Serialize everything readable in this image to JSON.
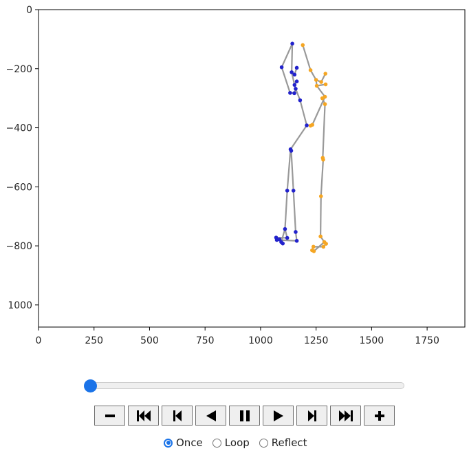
{
  "chart_data": {
    "type": "scatter",
    "title": "",
    "xlabel": "",
    "ylabel": "",
    "xlim": [
      0,
      1920
    ],
    "ylim": [
      1075,
      0
    ],
    "x_ticks": [
      0,
      250,
      500,
      750,
      1000,
      1250,
      1500,
      1750
    ],
    "y_ticks": [
      0,
      200,
      400,
      600,
      800,
      1000
    ],
    "x_tick_labels": [
      "0",
      "250",
      "500",
      "750",
      "1000",
      "1250",
      "1500",
      "1750"
    ],
    "y_tick_labels": [
      "0",
      "−200",
      "−400",
      "−600",
      "−800",
      "1000"
    ],
    "grid": false,
    "bone_color": "#999999",
    "series": [
      {
        "color": "#2222cc",
        "points": [
          [
            1143,
            115
          ],
          [
            1095,
            195
          ],
          [
            1163,
            197
          ],
          [
            1140,
            212
          ],
          [
            1153,
            220
          ],
          [
            1163,
            243
          ],
          [
            1153,
            255
          ],
          [
            1158,
            268
          ],
          [
            1133,
            282
          ],
          [
            1152,
            283
          ],
          [
            1178,
            307
          ],
          [
            1208,
            392
          ],
          [
            1135,
            473
          ],
          [
            1138,
            478
          ],
          [
            1120,
            613
          ],
          [
            1148,
            613
          ],
          [
            1110,
            743
          ],
          [
            1158,
            753
          ],
          [
            1070,
            772
          ],
          [
            1120,
            773
          ],
          [
            1085,
            778
          ],
          [
            1073,
            780
          ],
          [
            1163,
            783
          ],
          [
            1093,
            787
          ],
          [
            1100,
            792
          ]
        ],
        "bones": [
          [
            0,
            1
          ],
          [
            1,
            8
          ],
          [
            0,
            3
          ],
          [
            3,
            4
          ],
          [
            4,
            2
          ],
          [
            3,
            6
          ],
          [
            6,
            5
          ],
          [
            6,
            7
          ],
          [
            7,
            9
          ],
          [
            9,
            8
          ],
          [
            7,
            10
          ],
          [
            10,
            11
          ],
          [
            11,
            12
          ],
          [
            12,
            13
          ],
          [
            12,
            14
          ],
          [
            13,
            15
          ],
          [
            14,
            16
          ],
          [
            15,
            17
          ],
          [
            16,
            19
          ],
          [
            19,
            18
          ],
          [
            16,
            23
          ],
          [
            23,
            24
          ],
          [
            17,
            22
          ],
          [
            22,
            21
          ],
          [
            21,
            20
          ]
        ]
      },
      {
        "color": "#f5a623",
        "points": [
          [
            1190,
            120
          ],
          [
            1225,
            205
          ],
          [
            1292,
            217
          ],
          [
            1250,
            238
          ],
          [
            1273,
            245
          ],
          [
            1293,
            253
          ],
          [
            1253,
            258
          ],
          [
            1290,
            295
          ],
          [
            1278,
            300
          ],
          [
            1290,
            320
          ],
          [
            1233,
            390
          ],
          [
            1225,
            393
          ],
          [
            1280,
            502
          ],
          [
            1282,
            508
          ],
          [
            1272,
            632
          ],
          [
            1270,
            768
          ],
          [
            1287,
            787
          ],
          [
            1295,
            793
          ],
          [
            1283,
            803
          ],
          [
            1238,
            803
          ],
          [
            1232,
            815
          ],
          [
            1240,
            818
          ]
        ],
        "bones": [
          [
            0,
            1
          ],
          [
            1,
            3
          ],
          [
            3,
            4
          ],
          [
            4,
            2
          ],
          [
            3,
            6
          ],
          [
            6,
            5
          ],
          [
            6,
            7
          ],
          [
            7,
            8
          ],
          [
            8,
            9
          ],
          [
            7,
            10
          ],
          [
            10,
            11
          ],
          [
            9,
            12
          ],
          [
            12,
            13
          ],
          [
            13,
            14
          ],
          [
            14,
            15
          ],
          [
            15,
            16
          ],
          [
            16,
            17
          ],
          [
            17,
            18
          ],
          [
            18,
            19
          ],
          [
            19,
            20
          ],
          [
            20,
            21
          ],
          [
            16,
            21
          ]
        ]
      }
    ]
  },
  "player": {
    "slider_value": 0,
    "buttons": [
      "decrease-speed",
      "first-frame",
      "previous-frame",
      "play-reverse",
      "pause",
      "play",
      "next-frame",
      "last-frame",
      "increase-speed"
    ],
    "modes": [
      {
        "label": "Once",
        "checked": true
      },
      {
        "label": "Loop",
        "checked": false
      },
      {
        "label": "Reflect",
        "checked": false
      }
    ]
  }
}
